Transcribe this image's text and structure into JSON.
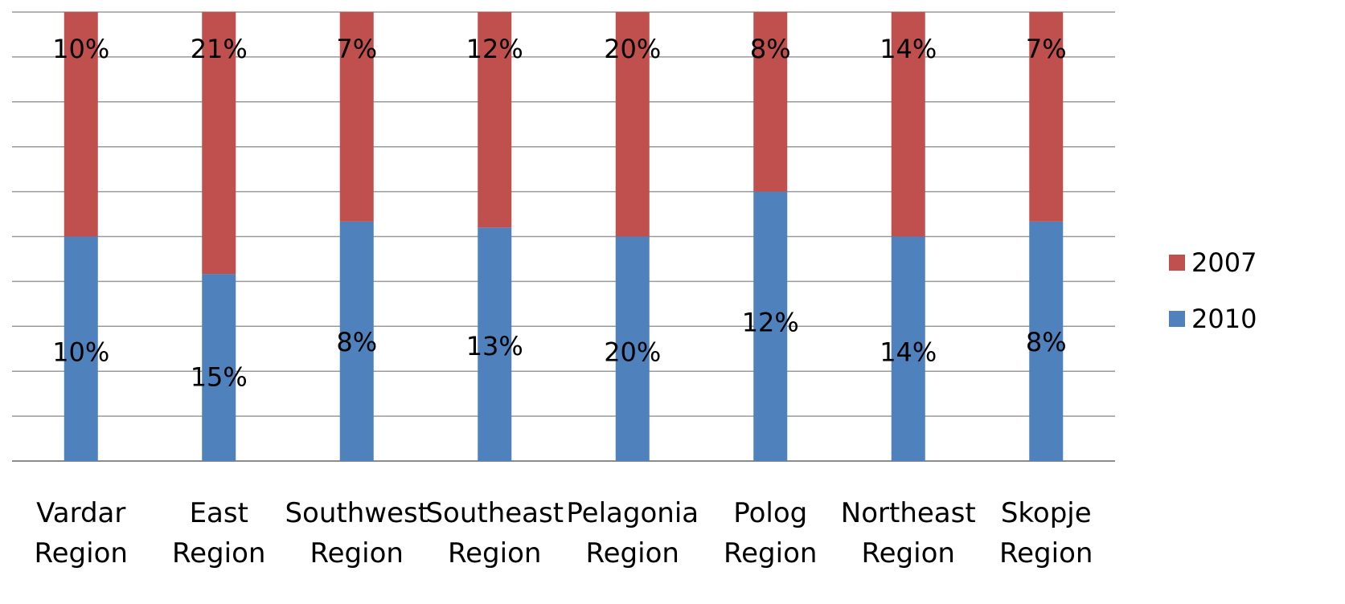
{
  "chart_data": {
    "type": "bar",
    "stacked": true,
    "percent_stacked": true,
    "categories": [
      [
        "Vardar",
        "Region"
      ],
      [
        "East",
        "Region"
      ],
      [
        "Southwest",
        "Region"
      ],
      [
        "Southeast",
        "Region"
      ],
      [
        "Pelagonia",
        "Region"
      ],
      [
        "Polog",
        "Region"
      ],
      [
        "Northeast",
        "Region"
      ],
      [
        "Skopje",
        "Region"
      ]
    ],
    "series": [
      {
        "name": "2010",
        "color": "#4F81BD",
        "values": [
          10,
          15,
          8,
          13,
          20,
          12,
          14,
          8
        ],
        "labels": [
          "10%",
          "15%",
          "8%",
          "13%",
          "20%",
          "12%",
          "14%",
          "8%"
        ]
      },
      {
        "name": "2007",
        "color": "#C0504D",
        "values": [
          10,
          21,
          7,
          12,
          20,
          8,
          14,
          7
        ],
        "labels": [
          "10%",
          "21%",
          "7%",
          "12%",
          "20%",
          "8%",
          "14%",
          "7%"
        ]
      }
    ],
    "legend_order": [
      "2007",
      "2010"
    ],
    "legend_position": "right",
    "grid": true,
    "ylim": [
      0,
      100
    ]
  }
}
